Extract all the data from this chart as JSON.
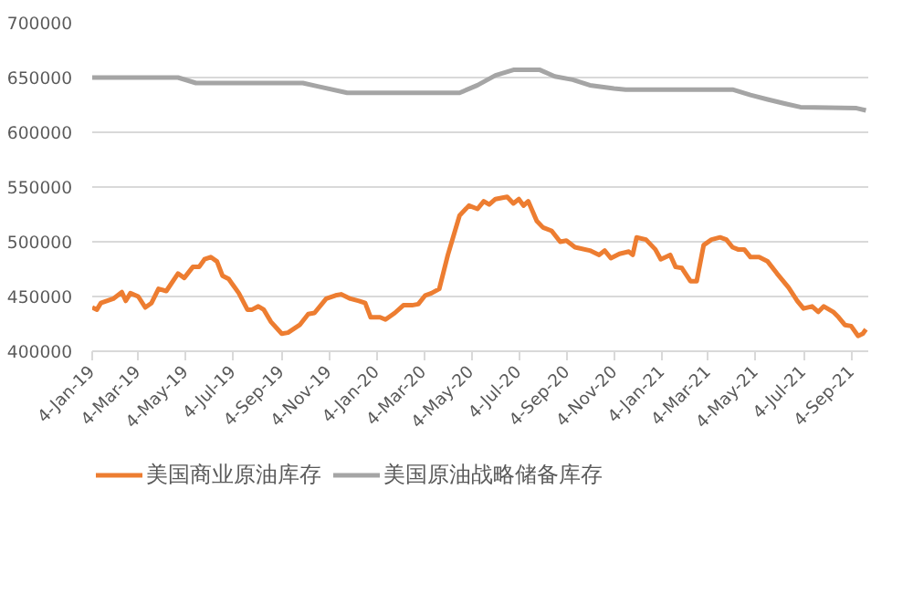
{
  "chart_data": {
    "type": "line",
    "ylim": [
      400000,
      700000
    ],
    "yticks": [
      400000,
      450000,
      500000,
      550000,
      600000,
      650000,
      700000
    ],
    "xlim": [
      "2019-01-04",
      "2021-09-25"
    ],
    "xticks": [
      {
        "value": "2019-01-04",
        "label": "4-Jan-19"
      },
      {
        "value": "2019-03-04",
        "label": "4-Mar-19"
      },
      {
        "value": "2019-05-04",
        "label": "4-May-19"
      },
      {
        "value": "2019-07-04",
        "label": "4-Jul-19"
      },
      {
        "value": "2019-09-04",
        "label": "4-Sep-19"
      },
      {
        "value": "2019-11-04",
        "label": "4-Nov-19"
      },
      {
        "value": "2020-01-04",
        "label": "4-Jan-20"
      },
      {
        "value": "2020-03-04",
        "label": "4-Mar-20"
      },
      {
        "value": "2020-05-04",
        "label": "4-May-20"
      },
      {
        "value": "2020-07-04",
        "label": "4-Jul-20"
      },
      {
        "value": "2020-09-04",
        "label": "4-Sep-20"
      },
      {
        "value": "2020-11-04",
        "label": "4-Nov-20"
      },
      {
        "value": "2021-01-04",
        "label": "4-Jan-21"
      },
      {
        "value": "2021-03-04",
        "label": "4-Mar-21"
      },
      {
        "value": "2021-05-04",
        "label": "4-May-21"
      },
      {
        "value": "2021-07-04",
        "label": "4-Jul-21"
      },
      {
        "value": "2021-09-04",
        "label": "4-Sep-21"
      }
    ],
    "grid": "y",
    "legend": "bottom",
    "marker": "none",
    "line_style": "solid",
    "series": [
      {
        "name": "美国商业原油库存",
        "color": "#ed7d31",
        "x": [
          "2019-01-04",
          "2019-01-10",
          "2019-01-15",
          "2019-01-31",
          "2019-02-11",
          "2019-02-16",
          "2019-02-22",
          "2019-03-04",
          "2019-03-13",
          "2019-03-21",
          "2019-03-30",
          "2019-04-09",
          "2019-04-24",
          "2019-05-02",
          "2019-05-13",
          "2019-05-21",
          "2019-05-28",
          "2019-06-05",
          "2019-06-13",
          "2019-06-20",
          "2019-06-28",
          "2019-07-04",
          "2019-07-11",
          "2019-07-22",
          "2019-07-28",
          "2019-08-05",
          "2019-08-12",
          "2019-08-21",
          "2019-09-04",
          "2019-09-12",
          "2019-09-27",
          "2019-10-08",
          "2019-10-16",
          "2019-10-31",
          "2019-11-12",
          "2019-11-19",
          "2019-12-01",
          "2019-12-12",
          "2019-12-20",
          "2019-12-27",
          "2020-01-08",
          "2020-01-15",
          "2020-01-27",
          "2020-02-07",
          "2020-02-18",
          "2020-02-26",
          "2020-03-06",
          "2020-03-14",
          "2020-03-24",
          "2020-04-04",
          "2020-04-19",
          "2020-05-01",
          "2020-05-12",
          "2020-05-20",
          "2020-05-27",
          "2020-06-04",
          "2020-06-19",
          "2020-06-27",
          "2020-07-04",
          "2020-07-10",
          "2020-07-16",
          "2020-07-27",
          "2020-08-04",
          "2020-08-15",
          "2020-08-26",
          "2020-09-03",
          "2020-09-14",
          "2020-10-03",
          "2020-10-15",
          "2020-10-22",
          "2020-10-30",
          "2020-11-10",
          "2020-11-22",
          "2020-11-27",
          "2020-12-02",
          "2020-12-14",
          "2020-12-26",
          "2021-01-02",
          "2021-01-14",
          "2021-01-21",
          "2021-01-29",
          "2021-02-09",
          "2021-02-17",
          "2021-02-26",
          "2021-03-08",
          "2021-03-19",
          "2021-03-27",
          "2021-04-04",
          "2021-04-11",
          "2021-04-19",
          "2021-04-27",
          "2021-05-08",
          "2021-05-19",
          "2021-05-31",
          "2021-06-15",
          "2021-06-26",
          "2021-07-04",
          "2021-07-15",
          "2021-07-23",
          "2021-07-30",
          "2021-08-11",
          "2021-08-18",
          "2021-08-26",
          "2021-09-03",
          "2021-09-12",
          "2021-09-18",
          "2021-09-22"
        ],
        "values": [
          440000,
          438000,
          444000,
          448000,
          454000,
          446000,
          453000,
          450000,
          440000,
          444000,
          457000,
          455000,
          471000,
          467000,
          477000,
          477000,
          484000,
          486000,
          482000,
          469000,
          466000,
          460000,
          453000,
          438000,
          438000,
          441000,
          438000,
          427000,
          416000,
          417000,
          424000,
          434000,
          435000,
          448000,
          451000,
          452000,
          448000,
          446000,
          444000,
          431000,
          431000,
          429000,
          435000,
          442000,
          442000,
          443000,
          451000,
          453000,
          457000,
          488000,
          524000,
          533000,
          530000,
          537000,
          534000,
          539000,
          541000,
          535000,
          539000,
          533000,
          537000,
          519000,
          513000,
          510000,
          500000,
          501000,
          495000,
          492000,
          488000,
          492000,
          485000,
          489000,
          491000,
          488000,
          504000,
          502000,
          493000,
          484000,
          488000,
          477000,
          476000,
          464000,
          464000,
          497000,
          502000,
          504000,
          502000,
          495000,
          493000,
          493000,
          486000,
          486000,
          482000,
          471000,
          458000,
          446000,
          439000,
          441000,
          436000,
          441000,
          436000,
          431000,
          424000,
          423000,
          414000,
          416000,
          420000
        ]
      },
      {
        "name": "美国原油战略储备库存",
        "color": "#a5a5a5",
        "x": [
          "2019-01-04",
          "2019-04-24",
          "2019-05-17",
          "2019-10-01",
          "2019-10-20",
          "2019-11-27",
          "2020-04-19",
          "2020-05-12",
          "2020-06-04",
          "2020-06-27",
          "2020-07-31",
          "2020-08-19",
          "2020-09-11",
          "2020-10-03",
          "2020-11-03",
          "2020-11-18",
          "2021-04-04",
          "2021-04-27",
          "2021-05-19",
          "2021-06-11",
          "2021-06-30",
          "2021-09-10",
          "2021-09-22"
        ],
        "values": [
          650000,
          650000,
          645000,
          645000,
          642000,
          636000,
          636000,
          643000,
          652000,
          657000,
          657000,
          651000,
          648000,
          643000,
          640000,
          639000,
          639000,
          634000,
          630000,
          626000,
          623000,
          622000,
          620000
        ]
      }
    ]
  }
}
